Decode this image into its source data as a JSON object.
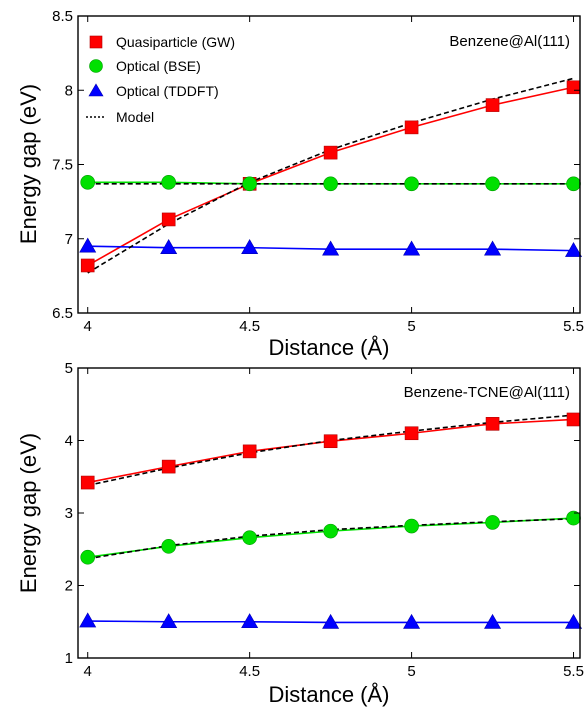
{
  "chart_data": [
    {
      "type": "line",
      "annotation": "Benzene@Al(111)",
      "xlabel": "Distance (Å)",
      "ylabel": "Energy gap (eV)",
      "xlim": [
        3.97,
        5.52
      ],
      "ylim": [
        6.5,
        8.5
      ],
      "xticks": [
        "4",
        "4.5",
        "5",
        "5.5"
      ],
      "yticks": [
        "6.5",
        "7",
        "7.5",
        "8",
        "8.5"
      ],
      "x": [
        4.0,
        4.25,
        4.5,
        4.75,
        5.0,
        5.25,
        5.5
      ],
      "legend": {
        "position": "top-left",
        "entries": [
          "Quasiparticle (GW)",
          "Optical (BSE)",
          "Optical (TDDFT)",
          "Model"
        ]
      },
      "series": [
        {
          "name": "Quasiparticle (GW)",
          "color": "#ff0000",
          "marker": "square",
          "values": [
            6.82,
            7.13,
            7.37,
            7.58,
            7.75,
            7.9,
            8.02
          ]
        },
        {
          "name": "Optical (BSE)",
          "color": "#00e000",
          "marker": "circle",
          "values": [
            7.38,
            7.38,
            7.37,
            7.37,
            7.37,
            7.37,
            7.37
          ]
        },
        {
          "name": "Optical (TDDFT)",
          "color": "#0000ff",
          "marker": "triangle",
          "values": [
            6.95,
            6.94,
            6.94,
            6.93,
            6.93,
            6.93,
            6.92
          ]
        }
      ],
      "model": [
        {
          "color": "#000000",
          "values": [
            6.77,
            7.1,
            7.38,
            7.6,
            7.78,
            7.94,
            8.08
          ]
        },
        {
          "color": "#000000",
          "values": [
            7.37,
            7.37,
            7.37,
            7.37,
            7.37,
            7.37,
            7.37
          ]
        }
      ]
    },
    {
      "type": "line",
      "annotation": "Benzene-TCNE@Al(111)",
      "xlabel": "Distance (Å)",
      "ylabel": "Energy gap (eV)",
      "xlim": [
        3.97,
        5.52
      ],
      "ylim": [
        1,
        5
      ],
      "xticks": [
        "4",
        "4.5",
        "5",
        "5.5"
      ],
      "yticks": [
        "1",
        "2",
        "3",
        "4",
        "5"
      ],
      "x": [
        4.0,
        4.25,
        4.5,
        4.75,
        5.0,
        5.25,
        5.5
      ],
      "series": [
        {
          "name": "Quasiparticle (GW)",
          "color": "#ff0000",
          "marker": "square",
          "values": [
            3.42,
            3.64,
            3.85,
            3.99,
            4.1,
            4.23,
            4.29
          ]
        },
        {
          "name": "Optical (BSE)",
          "color": "#00e000",
          "marker": "circle",
          "values": [
            2.39,
            2.54,
            2.66,
            2.75,
            2.82,
            2.87,
            2.93
          ]
        },
        {
          "name": "Optical (TDDFT)",
          "color": "#0000ff",
          "marker": "triangle",
          "values": [
            1.51,
            1.5,
            1.5,
            1.49,
            1.49,
            1.49,
            1.49
          ]
        }
      ],
      "model": [
        {
          "color": "#000000",
          "values": [
            3.38,
            3.62,
            3.83,
            4.0,
            4.13,
            4.25,
            4.35
          ]
        },
        {
          "color": "#000000",
          "values": [
            2.37,
            2.55,
            2.68,
            2.77,
            2.83,
            2.88,
            2.92
          ]
        }
      ]
    }
  ]
}
